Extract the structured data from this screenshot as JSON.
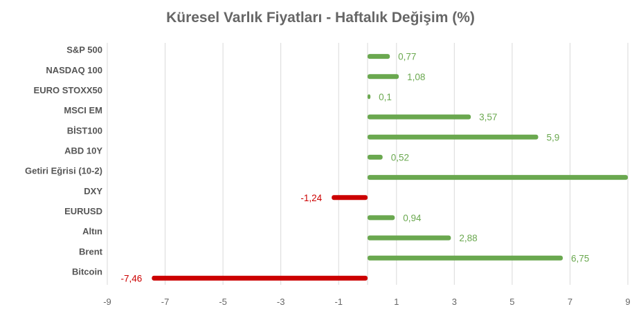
{
  "chart_data": {
    "type": "bar",
    "orientation": "horizontal",
    "title": "Küresel Varlık Fiyatları - Haftalık Değişim (%)",
    "xlabel": "",
    "ylabel": "",
    "xlim": [
      -9,
      9
    ],
    "xticks": [
      "-9",
      "-7",
      "-5",
      "-3",
      "-1",
      "1",
      "3",
      "5",
      "7",
      "9"
    ],
    "grid": true,
    "legend": "none",
    "categories": [
      "S&P 500",
      "NASDAQ 100",
      "EURO STOXX50",
      "MSCI EM",
      "BİST100",
      "ABD 10Y",
      "Getiri Eğrisi (10-2)",
      "DXY",
      "EURUSD",
      "Altın",
      "Brent",
      "Bitcoin"
    ],
    "values": [
      0.77,
      1.08,
      0.1,
      3.57,
      5.9,
      0.52,
      9.0,
      -1.24,
      0.94,
      2.88,
      6.75,
      -7.46
    ],
    "data_labels": [
      "0,77",
      "1,08",
      "0,1",
      "3,57",
      "5,9",
      "0,52",
      "",
      "-1,24",
      "0,94",
      "2,88",
      "6,75",
      "-7,46"
    ],
    "colors": {
      "positive": "#6aa84f",
      "negative": "#cc0000",
      "positive_label": "#6aa84f",
      "negative_label": "#cc0000",
      "grid": "#d9d9d9"
    }
  }
}
